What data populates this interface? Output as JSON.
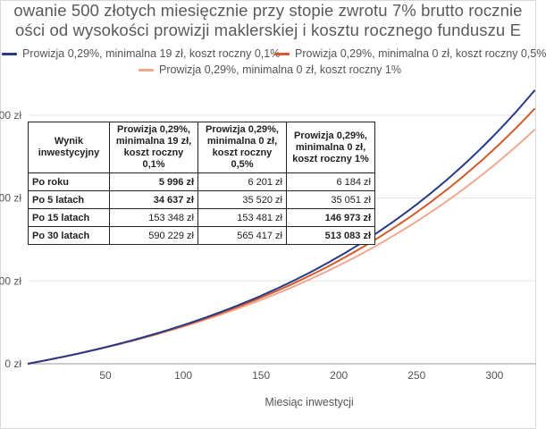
{
  "title_lines": [
    "owanie 500 złotych miesięcznie przy stopie zwrotu 7% brutto rocznie",
    "ości od wysokości prowizji maklerskiej i kosztu rocznego funduszu E"
  ],
  "chart_data": {
    "type": "line",
    "xlabel": "Miesiąc inwestycji",
    "x_ticks": [
      50,
      100,
      150,
      200,
      250,
      300
    ],
    "y_tick_labels": [
      "0 zł",
      "00 zł",
      "00 zł",
      "00 zł"
    ],
    "grid": "horizontal",
    "legend_position": "top",
    "series": [
      {
        "name": "Prowizja 0,29%, minimalna 19 zł, koszt roczny 0,1%",
        "color": "#263a86",
        "annual_cost": 0.001
      },
      {
        "name": "Prowizja 0,29%, minimalna 0 zł, koszt roczny 0,5%",
        "color": "#d35a2c",
        "annual_cost": 0.005
      },
      {
        "name": "Prowizja 0,29%, minimalna 0 zł, koszt roczny 1%",
        "color": "#f0a890",
        "annual_cost": 0.01
      }
    ]
  },
  "table": {
    "corner_label": "Wynik inwestycyjny",
    "headers": [
      "Prowizja 0,29%, minimalna 19 zł, koszt roczny 0,1%",
      "Prowizja 0,29%, minimalna 0 zł, koszt roczny 0,5%",
      "Prowizja 0,29%, minimalna 0 zł, koszt roczny 1%"
    ],
    "rows": [
      {
        "label": "Po roku",
        "values": [
          "5 996 zł",
          "6 201 zł",
          "6 184 zł"
        ],
        "bold_col": 0
      },
      {
        "label": "Po 5 latach",
        "values": [
          "34 637 zł",
          "35 520 zł",
          "35 051 zł"
        ],
        "bold_col": 0
      },
      {
        "label": "Po 15 latach",
        "values": [
          "153 348 zł",
          "153 481 zł",
          "146 973 zł"
        ],
        "bold_col": 2
      },
      {
        "label": "Po 30 latach",
        "values": [
          "590 229 zł",
          "565 417 zł",
          "513 083 zł"
        ],
        "bold_col": 2
      }
    ]
  }
}
